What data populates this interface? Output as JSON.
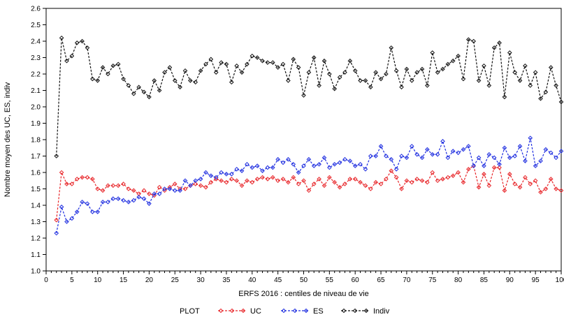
{
  "chart_data": {
    "type": "line",
    "xlabel": "ERFS 2016 : centiles de niveau de vie",
    "ylabel": "Nombre moyen des UC, ES, indiv",
    "xlim": [
      0,
      100
    ],
    "ylim": [
      1.0,
      2.6
    ],
    "x_ticks": [
      0,
      5,
      10,
      15,
      20,
      25,
      30,
      35,
      40,
      45,
      50,
      55,
      60,
      65,
      70,
      75,
      80,
      85,
      90,
      95,
      100
    ],
    "y_ticks": [
      1.0,
      1.1,
      1.2,
      1.3,
      1.4,
      1.5,
      1.6,
      1.7,
      1.8,
      1.9,
      2.0,
      2.1,
      2.2,
      2.3,
      2.4,
      2.5,
      2.6
    ],
    "x": [
      2,
      3,
      4,
      5,
      6,
      7,
      8,
      9,
      10,
      11,
      12,
      13,
      14,
      15,
      16,
      17,
      18,
      19,
      20,
      21,
      22,
      23,
      24,
      25,
      26,
      27,
      28,
      29,
      30,
      31,
      32,
      33,
      34,
      35,
      36,
      37,
      38,
      39,
      40,
      41,
      42,
      43,
      44,
      45,
      46,
      47,
      48,
      49,
      50,
      51,
      52,
      53,
      54,
      55,
      56,
      57,
      58,
      59,
      60,
      61,
      62,
      63,
      64,
      65,
      66,
      67,
      68,
      69,
      70,
      71,
      72,
      73,
      74,
      75,
      76,
      77,
      78,
      79,
      80,
      81,
      82,
      83,
      84,
      85,
      86,
      87,
      88,
      89,
      90,
      91,
      92,
      93,
      94,
      95,
      96,
      97,
      98,
      99,
      100
    ],
    "series": [
      {
        "name": "UC",
        "color": "#e8262a",
        "values": [
          1.31,
          1.6,
          1.53,
          1.53,
          1.56,
          1.57,
          1.57,
          1.56,
          1.5,
          1.49,
          1.52,
          1.52,
          1.52,
          1.53,
          1.5,
          1.49,
          1.47,
          1.49,
          1.47,
          1.46,
          1.51,
          1.49,
          1.51,
          1.53,
          1.5,
          1.5,
          1.52,
          1.53,
          1.52,
          1.51,
          1.54,
          1.56,
          1.55,
          1.54,
          1.56,
          1.55,
          1.52,
          1.55,
          1.54,
          1.56,
          1.57,
          1.56,
          1.57,
          1.55,
          1.56,
          1.54,
          1.57,
          1.53,
          1.55,
          1.49,
          1.53,
          1.56,
          1.52,
          1.57,
          1.54,
          1.51,
          1.53,
          1.56,
          1.56,
          1.54,
          1.52,
          1.5,
          1.54,
          1.53,
          1.56,
          1.61,
          1.57,
          1.5,
          1.55,
          1.54,
          1.56,
          1.55,
          1.54,
          1.6,
          1.55,
          1.56,
          1.57,
          1.58,
          1.6,
          1.54,
          1.62,
          1.64,
          1.51,
          1.59,
          1.52,
          1.63,
          1.63,
          1.49,
          1.59,
          1.53,
          1.51,
          1.57,
          1.53,
          1.55,
          1.48,
          1.5,
          1.56,
          1.5,
          1.49
        ]
      },
      {
        "name": "ES",
        "color": "#1f2ee0",
        "values": [
          1.23,
          1.39,
          1.3,
          1.32,
          1.36,
          1.42,
          1.41,
          1.36,
          1.36,
          1.42,
          1.42,
          1.44,
          1.44,
          1.43,
          1.42,
          1.43,
          1.45,
          1.44,
          1.41,
          1.47,
          1.47,
          1.5,
          1.5,
          1.49,
          1.49,
          1.55,
          1.52,
          1.55,
          1.56,
          1.6,
          1.58,
          1.57,
          1.6,
          1.59,
          1.59,
          1.62,
          1.61,
          1.65,
          1.63,
          1.64,
          1.61,
          1.63,
          1.63,
          1.68,
          1.66,
          1.68,
          1.65,
          1.6,
          1.64,
          1.68,
          1.64,
          1.65,
          1.69,
          1.63,
          1.65,
          1.66,
          1.68,
          1.67,
          1.64,
          1.65,
          1.62,
          1.7,
          1.7,
          1.76,
          1.7,
          1.68,
          1.62,
          1.7,
          1.69,
          1.76,
          1.71,
          1.69,
          1.74,
          1.71,
          1.71,
          1.79,
          1.69,
          1.73,
          1.72,
          1.74,
          1.76,
          1.64,
          1.69,
          1.64,
          1.71,
          1.69,
          1.65,
          1.75,
          1.69,
          1.7,
          1.76,
          1.67,
          1.81,
          1.64,
          1.67,
          1.74,
          1.72,
          1.69,
          1.73
        ]
      },
      {
        "name": "Indiv",
        "color": "#111111",
        "values": [
          1.7,
          2.42,
          2.28,
          2.31,
          2.39,
          2.4,
          2.36,
          2.17,
          2.16,
          2.24,
          2.2,
          2.25,
          2.26,
          2.17,
          2.13,
          2.08,
          2.12,
          2.09,
          2.06,
          2.16,
          2.1,
          2.21,
          2.24,
          2.16,
          2.12,
          2.22,
          2.16,
          2.15,
          2.22,
          2.26,
          2.29,
          2.21,
          2.27,
          2.26,
          2.15,
          2.25,
          2.21,
          2.26,
          2.31,
          2.3,
          2.28,
          2.27,
          2.27,
          2.24,
          2.26,
          2.16,
          2.29,
          2.24,
          2.07,
          2.21,
          2.3,
          2.13,
          2.28,
          2.2,
          2.11,
          2.18,
          2.21,
          2.28,
          2.22,
          2.16,
          2.16,
          2.12,
          2.21,
          2.17,
          2.2,
          2.36,
          2.22,
          2.12,
          2.23,
          2.16,
          2.21,
          2.23,
          2.13,
          2.33,
          2.21,
          2.23,
          2.26,
          2.28,
          2.31,
          2.17,
          2.41,
          2.4,
          2.16,
          2.25,
          2.13,
          2.36,
          2.39,
          2.06,
          2.33,
          2.21,
          2.16,
          2.25,
          2.13,
          2.21,
          2.05,
          2.09,
          2.24,
          2.13,
          2.03
        ]
      }
    ],
    "legend": {
      "position": "bottom",
      "title": "PLOT",
      "entries": [
        "UC",
        "ES",
        "Indiv"
      ]
    },
    "grid": false
  }
}
